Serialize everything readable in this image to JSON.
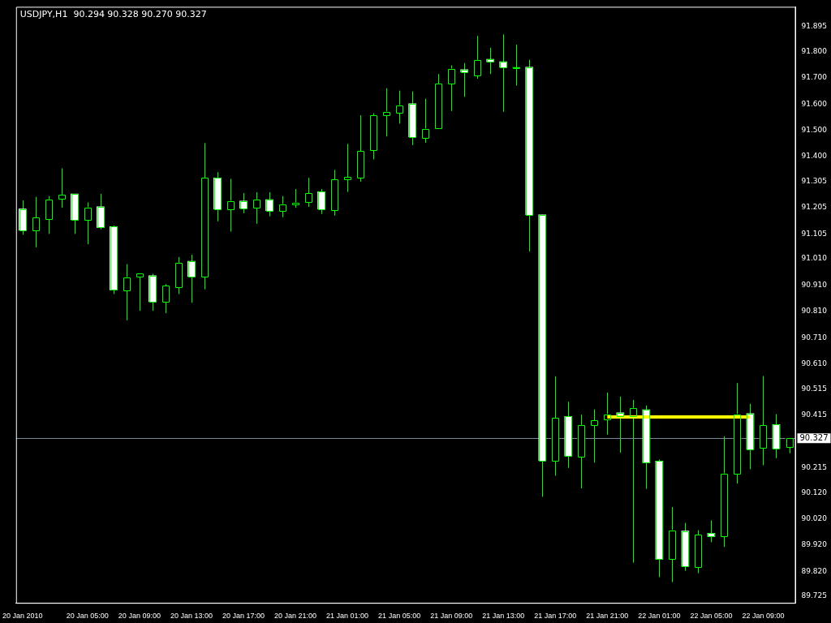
{
  "chart_data": {
    "type": "candlestick",
    "title": "USDJPY,H1  90.294 90.328 90.270 90.327",
    "categories": [
      "20 Jan 2010",
      null,
      null,
      null,
      null,
      "20 Jan 05:00",
      null,
      null,
      null,
      "20 Jan 09:00",
      null,
      null,
      null,
      "20 Jan 13:00",
      null,
      null,
      null,
      "20 Jan 17:00",
      null,
      null,
      null,
      "20 Jan 21:00",
      null,
      null,
      null,
      "21 Jan 01:00",
      null,
      null,
      null,
      "21 Jan 05:00",
      null,
      null,
      null,
      "21 Jan 09:00",
      null,
      null,
      null,
      "21 Jan 13:00",
      null,
      null,
      null,
      "21 Jan 17:00",
      null,
      null,
      null,
      "21 Jan 21:00",
      null,
      null,
      null,
      "22 Jan 01:00",
      null,
      null,
      null,
      "22 Jan 05:00",
      null,
      null,
      null,
      "22 Jan 09:00",
      null,
      null
    ],
    "colors": [
      "#ffffff",
      "#000000",
      "#000000",
      "#000000",
      "#ffffff",
      "#000000",
      "#ffffff",
      "#ffffff",
      "#000000",
      "#000000",
      "#ffffff",
      "#000000",
      "#000000",
      "#ffffff",
      "#000000",
      "#ffffff",
      "#000000",
      "#ffffff",
      "#000000",
      "#ffffff",
      "#000000",
      "#000000",
      "#000000",
      "#ffffff",
      "#000000",
      "#000000",
      "#000000",
      "#000000",
      "#000000",
      "#000000",
      "#ffffff",
      "#000000",
      "#000000",
      "#000000",
      "#ffffff",
      "#000000",
      "#ffffff",
      "#ffffff",
      "#00ff00",
      "#ffffff",
      "#ffffff",
      "#000000",
      "#ffffff",
      "#000000",
      "#000000",
      "#000000",
      "#ffffff",
      "#000000",
      "#ffffff",
      "#ffffff",
      "#000000",
      "#ffffff",
      "#000000",
      "#ffffff",
      "#000000",
      "#000000",
      "#ffffff",
      "#000000",
      "#ffffff",
      "#000000"
    ],
    "ohlc": [
      [
        91.2,
        91.233,
        91.102,
        91.12
      ],
      [
        91.12,
        91.246,
        91.054,
        91.167
      ],
      [
        91.162,
        91.249,
        91.105,
        91.236
      ],
      [
        91.239,
        91.355,
        91.205,
        91.254
      ],
      [
        91.257,
        91.257,
        91.105,
        91.159
      ],
      [
        91.158,
        91.225,
        91.066,
        91.206
      ],
      [
        91.209,
        91.258,
        91.123,
        91.13
      ],
      [
        91.133,
        91.137,
        90.876,
        90.892
      ],
      [
        90.889,
        90.99,
        90.776,
        90.94
      ],
      [
        90.943,
        90.955,
        90.812,
        90.955
      ],
      [
        90.946,
        90.953,
        90.812,
        90.847
      ],
      [
        90.847,
        90.914,
        90.803,
        90.907
      ],
      [
        90.901,
        91.017,
        90.876,
        90.995
      ],
      [
        91.001,
        91.026,
        90.843,
        90.943
      ],
      [
        90.943,
        91.451,
        90.894,
        91.318
      ],
      [
        91.318,
        91.34,
        91.153,
        91.2
      ],
      [
        91.2,
        91.315,
        91.114,
        91.23
      ],
      [
        91.23,
        91.261,
        91.184,
        91.203
      ],
      [
        91.206,
        91.264,
        91.144,
        91.236
      ],
      [
        91.236,
        91.264,
        91.172,
        91.194
      ],
      [
        91.194,
        91.249,
        91.169,
        91.218
      ],
      [
        91.218,
        91.276,
        91.205,
        91.224
      ],
      [
        91.227,
        91.319,
        91.208,
        91.26
      ],
      [
        91.266,
        91.276,
        91.181,
        91.2
      ],
      [
        91.197,
        91.349,
        91.175,
        91.312
      ],
      [
        91.312,
        91.448,
        91.265,
        91.321
      ],
      [
        91.318,
        91.557,
        91.304,
        91.42
      ],
      [
        91.423,
        91.565,
        91.389,
        91.556
      ],
      [
        91.556,
        91.66,
        91.476,
        91.571
      ],
      [
        91.565,
        91.651,
        91.525,
        91.595
      ],
      [
        91.601,
        91.648,
        91.443,
        91.475
      ],
      [
        91.472,
        91.62,
        91.452,
        91.505
      ],
      [
        91.508,
        91.714,
        91.508,
        91.677
      ],
      [
        91.677,
        91.747,
        91.573,
        91.734
      ],
      [
        91.731,
        91.756,
        91.627,
        91.722
      ],
      [
        91.71,
        91.859,
        91.696,
        91.767
      ],
      [
        91.77,
        91.814,
        91.714,
        91.761
      ],
      [
        91.761,
        91.865,
        91.57,
        91.74
      ],
      [
        91.739,
        91.826,
        91.67,
        91.739
      ],
      [
        91.74,
        91.768,
        91.038,
        91.178
      ],
      [
        91.178,
        91.178,
        90.104,
        90.242
      ],
      [
        90.242,
        90.563,
        90.184,
        90.404
      ],
      [
        90.41,
        90.466,
        90.214,
        90.259
      ],
      [
        90.256,
        90.417,
        90.136,
        90.377
      ],
      [
        90.377,
        90.437,
        90.234,
        90.395
      ],
      [
        90.4,
        90.501,
        90.341,
        90.418
      ],
      [
        90.424,
        90.486,
        90.272,
        90.412
      ],
      [
        90.412,
        90.473,
        89.853,
        90.442
      ],
      [
        90.436,
        90.452,
        90.134,
        90.234
      ],
      [
        90.24,
        90.246,
        89.798,
        89.866
      ],
      [
        89.868,
        90.065,
        89.779,
        89.977
      ],
      [
        89.974,
        90.005,
        89.822,
        89.839
      ],
      [
        89.836,
        89.977,
        89.813,
        89.959
      ],
      [
        89.965,
        90.014,
        89.931,
        89.953
      ],
      [
        89.953,
        90.334,
        89.913,
        90.192
      ],
      [
        90.192,
        90.537,
        90.154,
        90.418
      ],
      [
        90.421,
        90.458,
        90.209,
        90.285
      ],
      [
        90.291,
        90.564,
        90.224,
        90.376
      ],
      [
        90.379,
        90.419,
        90.251,
        90.288
      ],
      [
        90.294,
        90.328,
        90.27,
        90.327
      ]
    ],
    "series": [
      {
        "type": "line",
        "color": "#ffff00",
        "values": [
          null,
          null,
          null,
          null,
          null,
          null,
          null,
          null,
          null,
          null,
          null,
          null,
          null,
          null,
          null,
          null,
          null,
          null,
          null,
          null,
          null,
          null,
          null,
          null,
          null,
          null,
          null,
          null,
          null,
          null,
          null,
          null,
          null,
          null,
          null,
          null,
          null,
          null,
          null,
          null,
          null,
          null,
          null,
          null,
          null,
          90.408,
          null,
          null,
          null,
          null,
          null,
          null,
          null,
          null,
          null,
          null,
          90.408,
          null,
          null,
          null
        ]
      }
    ],
    "ref_lines": [
      {
        "axis": "y",
        "value": 90.327,
        "label": "90.327",
        "color": "#778899"
      }
    ],
    "ylim": [
      89.7,
      91.97
    ],
    "yticks": [
      91.895,
      {
        "value": 91.8,
        "label": "91.800"
      },
      {
        "value": 91.7,
        "label": "91.700"
      },
      {
        "value": 91.6,
        "label": "91.600"
      },
      {
        "value": 91.5,
        "label": "91.500"
      },
      {
        "value": 91.4,
        "label": "91.400"
      },
      91.305,
      91.205,
      91.105,
      {
        "value": 91.01,
        "label": "91.010"
      },
      {
        "value": 90.91,
        "label": "90.910"
      },
      {
        "value": 90.81,
        "label": "90.810"
      },
      {
        "value": 90.71,
        "label": "90.710"
      },
      {
        "value": 90.61,
        "label": "90.610"
      },
      90.515,
      90.415,
      90.215,
      {
        "value": 90.12,
        "label": "90.120"
      },
      {
        "value": 90.02,
        "label": "90.020"
      },
      {
        "value": 89.92,
        "label": "89.920"
      },
      {
        "value": 89.82,
        "label": "89.820"
      },
      89.725
    ],
    "grid": false,
    "legend": false
  }
}
